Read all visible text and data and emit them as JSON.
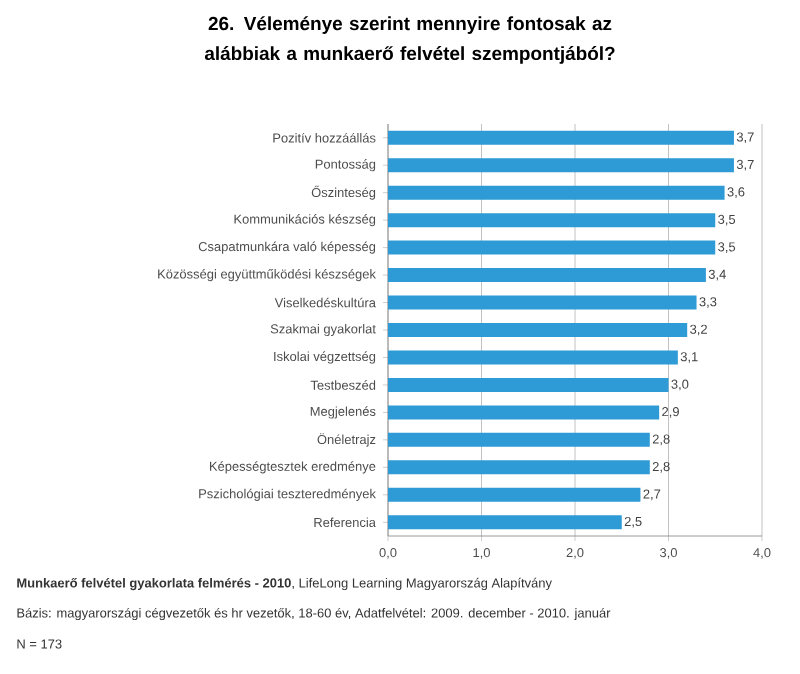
{
  "chart_data": {
    "type": "bar",
    "orientation": "horizontal",
    "title": "26. Véleménye szerint mennyire fontosak az alábbiak a munkaerő felvétel szempontjából?",
    "categories": [
      "Pozitív hozzáállás",
      "Pontosság",
      "Őszinteség",
      "Kommunikációs készség",
      "Csapatmunkára való képesség",
      "Közösségi együttműködési készségek",
      "Viselkedéskultúra",
      "Szakmai gyakorlat",
      "Iskolai végzettség",
      "Testbeszéd",
      "Megjelenés",
      "Önéletrajz",
      "Képességtesztek eredménye",
      "Pszichológiai teszteredmények",
      "Referencia"
    ],
    "values": [
      3.7,
      3.7,
      3.6,
      3.5,
      3.5,
      3.4,
      3.3,
      3.2,
      3.1,
      3.0,
      2.9,
      2.8,
      2.8,
      2.7,
      2.5
    ],
    "value_labels": [
      "3,7",
      "3,7",
      "3,6",
      "3,5",
      "3,5",
      "3,4",
      "3,3",
      "3,2",
      "3,1",
      "3,0",
      "2,9",
      "2,8",
      "2,8",
      "2,7",
      "2,5"
    ],
    "color": "#2e9bd6",
    "xlim": [
      0,
      4
    ],
    "xticks": [
      {
        "value": 0,
        "label": "0,0"
      },
      {
        "value": 1,
        "label": "1,0"
      },
      {
        "value": 2,
        "label": "2,0"
      },
      {
        "value": 3,
        "label": "3,0"
      },
      {
        "value": 4,
        "label": "4,0"
      }
    ],
    "grid": "x",
    "annotations": [
      "**Munkaerő felvétel gyakorlata felmérés  - 2010**, LifeLong Learning Magyarország Alapítvány",
      "Bázis:  magyarországi cégvezetők és  hr vezetők, 18-60 év, Adatfelvétel: 2009. december - 2010. január",
      "N = 173"
    ]
  }
}
